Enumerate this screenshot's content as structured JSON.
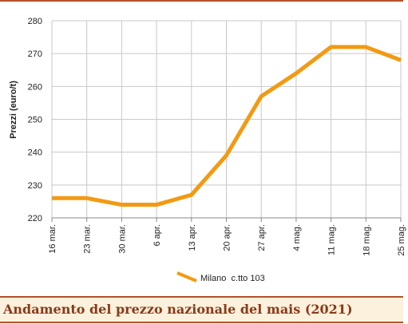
{
  "caption": "Andamento del prezzo nazionale del mais (2021)",
  "colors": {
    "series": "#f29a12",
    "accent_rule": "#b5512a",
    "caption_bg": "#fbf1dc",
    "caption_text": "#8a3a1a",
    "grid": "#c8c8c8"
  },
  "chart_data": {
    "type": "line",
    "title": "",
    "xlabel": "",
    "ylabel": "Prezzi (euro/t)",
    "categories": [
      "16 mar.",
      "23 mar.",
      "30 mar.",
      "6 apr.",
      "13 apr.",
      "20 apr.",
      "27 apr.",
      "4 mag.",
      "11 mag.",
      "18 mag.",
      "25 mag."
    ],
    "series": [
      {
        "name": "Milano  c.tto 103",
        "values": [
          226,
          226,
          224,
          224,
          227,
          239,
          257,
          264,
          272,
          272,
          268
        ]
      }
    ],
    "ylim": [
      220,
      280
    ],
    "yticks": [
      220,
      230,
      240,
      250,
      260,
      270,
      280
    ],
    "grid": true,
    "legend_position": "bottom-center"
  }
}
